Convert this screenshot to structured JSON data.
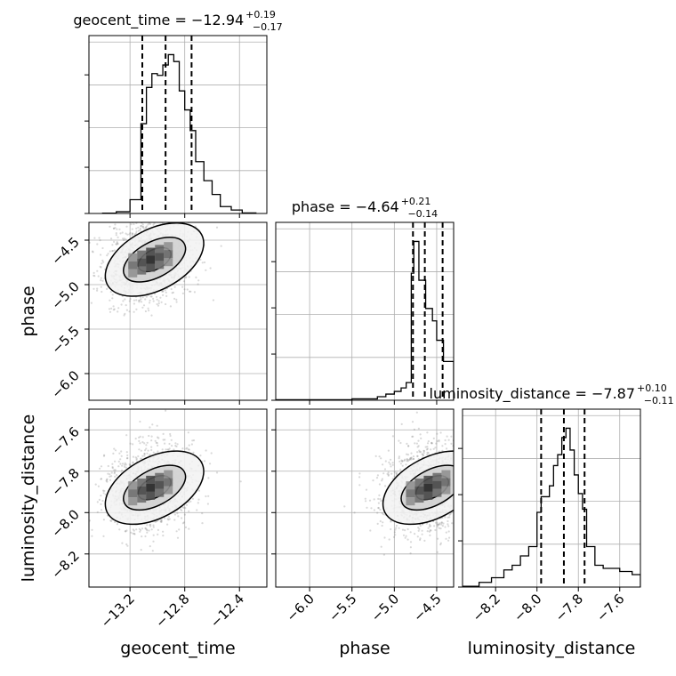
{
  "chart_data": {
    "type": "corner",
    "parameters": [
      "geocent_time",
      "phase",
      "luminosity_distance"
    ],
    "grid": true,
    "panels": [
      {
        "kind": "histogram",
        "row": 0,
        "col": 0,
        "parameter": "geocent_time",
        "title": {
          "prefix": "geocent_time = ",
          "value": "−12.94",
          "upper": "+0.19",
          "lower": "−0.17"
        },
        "xlim": [
          -13.5,
          -12.2
        ],
        "quantiles": [
          -13.11,
          -12.94,
          -12.75
        ],
        "bins": [
          -13.4,
          -13.3,
          -13.2,
          -13.12,
          -13.08,
          -13.04,
          -13.0,
          -12.96,
          -12.92,
          -12.88,
          -12.84,
          -12.8,
          -12.76,
          -12.72,
          -12.66,
          -12.6,
          -12.54,
          -12.46,
          -12.38,
          -12.28
        ],
        "counts": [
          0.2,
          1,
          8,
          52,
          73,
          81,
          80,
          86,
          92,
          88,
          71,
          60,
          48,
          30,
          19,
          11,
          4,
          2,
          0.3
        ]
      },
      {
        "kind": "scatter2d",
        "row": 1,
        "col": 0,
        "x_parameter": "geocent_time",
        "y_parameter": "phase",
        "xlim": [
          -13.5,
          -12.2
        ],
        "ylim": [
          -6.3,
          -4.3
        ],
        "density_peak": [
          -13.05,
          -4.72
        ],
        "contour_levels": 3
      },
      {
        "kind": "histogram",
        "row": 1,
        "col": 1,
        "parameter": "phase",
        "title": {
          "prefix": "phase = ",
          "value": "−4.64",
          "upper": "+0.21",
          "lower": "−0.14"
        },
        "xlim": [
          -6.4,
          -4.3
        ],
        "quantiles": [
          -4.78,
          -4.64,
          -4.43
        ],
        "bins": [
          -6.4,
          -5.5,
          -5.2,
          -5.1,
          -5.0,
          -4.92,
          -4.86,
          -4.8,
          -4.77,
          -4.71,
          -4.63,
          -4.55,
          -4.5,
          -4.42,
          -4.38,
          -4.3
        ],
        "counts": [
          0.3,
          0.8,
          2,
          3.5,
          5,
          7,
          10,
          72,
          90,
          68,
          52,
          45,
          34,
          22,
          22
        ]
      },
      {
        "kind": "scatter2d",
        "row": 2,
        "col": 0,
        "x_parameter": "geocent_time",
        "y_parameter": "luminosity_distance",
        "xlim": [
          -13.5,
          -12.2
        ],
        "ylim": [
          -8.36,
          -7.5
        ],
        "density_peak": [
          -13.05,
          -7.88
        ],
        "contour_levels": 3
      },
      {
        "kind": "scatter2d",
        "row": 2,
        "col": 1,
        "x_parameter": "phase",
        "y_parameter": "luminosity_distance",
        "xlim": [
          -6.4,
          -4.3
        ],
        "ylim": [
          -8.36,
          -7.5
        ],
        "density_peak": [
          -4.6,
          -7.88
        ],
        "contour_levels": 3
      },
      {
        "kind": "histogram",
        "row": 2,
        "col": 2,
        "parameter": "luminosity_distance",
        "title": {
          "prefix": "luminosity_distance = ",
          "value": "−7.87",
          "upper": "+0.10",
          "lower": "−0.11"
        },
        "xlim": [
          -8.36,
          -7.5
        ],
        "quantiles": [
          -7.98,
          -7.87,
          -7.77
        ],
        "bins": [
          -8.36,
          -8.28,
          -8.22,
          -8.16,
          -8.12,
          -8.08,
          -8.04,
          -8.0,
          -7.98,
          -7.96,
          -7.94,
          -7.92,
          -7.9,
          -7.88,
          -7.86,
          -7.84,
          -7.82,
          -7.8,
          -7.78,
          -7.76,
          -7.72,
          -7.68,
          -7.6,
          -7.54,
          -7.5
        ],
        "counts": [
          0.5,
          3,
          6,
          11,
          14,
          20,
          26,
          48,
          58,
          58,
          65,
          78,
          85,
          96,
          102,
          88,
          72,
          60,
          50,
          26,
          14,
          12,
          10,
          8
        ]
      }
    ],
    "axes": {
      "geocent_time": {
        "label": "geocent_time",
        "ticks": [
          -13.2,
          -12.8,
          -12.4
        ],
        "tick_labels": [
          "−13.2",
          "−12.8",
          "−12.4"
        ]
      },
      "phase": {
        "label": "phase",
        "ticks": [
          -6.0,
          -5.5,
          -5.0,
          -4.5
        ],
        "tick_labels": [
          "−6.0",
          "−5.5",
          "−5.0",
          "−4.5"
        ]
      },
      "luminosity_distance": {
        "label": "luminosity_distance",
        "ticks": [
          -8.2,
          -8.0,
          -7.8,
          -7.6
        ],
        "tick_labels": [
          "−8.2",
          "−8.0",
          "−7.8",
          "−7.6"
        ]
      }
    }
  }
}
